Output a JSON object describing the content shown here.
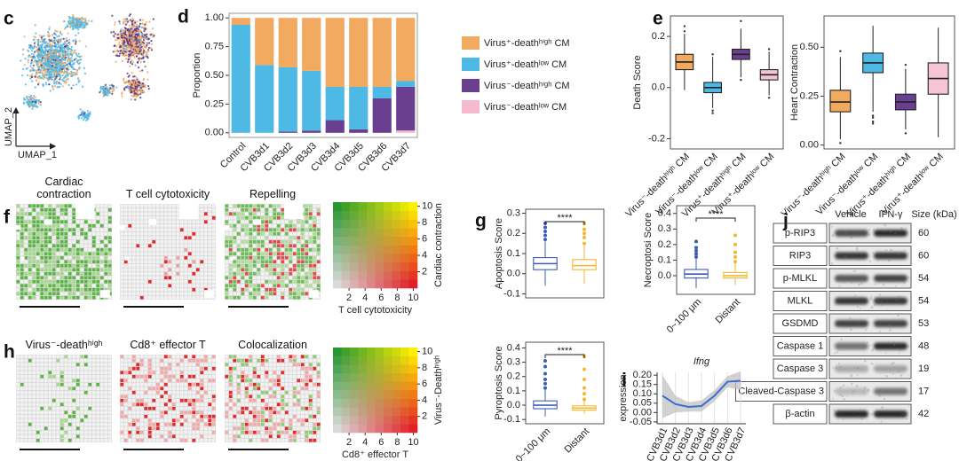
{
  "panel_labels": [
    "c",
    "d",
    "e",
    "f",
    "g",
    "h",
    "i",
    "j"
  ],
  "umap": {
    "x_label": "UMAP_1",
    "y_label": "UMAP_2"
  },
  "spatial_maps": {
    "f": [
      "Cardiac contraction",
      "T cell cytotoxicity",
      "Repelling"
    ],
    "h": [
      "Virus⁻-deathʰⁱᵍʰ",
      "Cd8⁺ effector T",
      "Colocalization"
    ]
  },
  "chart_data": [
    {
      "type": "bar",
      "stacked": true,
      "ylabel": "Proportion",
      "categories": [
        "Control",
        "CVB3d1",
        "CVB3d2",
        "CVB3d3",
        "CVB3d4",
        "CVB3d5",
        "CVB3d6",
        "CVB3d7"
      ],
      "series": [
        {
          "name": "Virus⁺-deathʰⁱᵍʰ CM",
          "color": "#f2a960",
          "values": [
            0.06,
            0.41,
            0.43,
            0.46,
            0.6,
            0.6,
            0.6,
            0.55
          ]
        },
        {
          "name": "Virus⁺-deathˡᵒʷ CM",
          "color": "#4fb9e6",
          "values": [
            0.94,
            0.59,
            0.56,
            0.52,
            0.29,
            0.37,
            0.1,
            0.05
          ]
        },
        {
          "name": "Virus⁻-deathʰⁱᵍʰ CM",
          "color": "#6b3f8f",
          "values": [
            0,
            0,
            0.01,
            0.02,
            0.11,
            0.03,
            0.3,
            0.38
          ]
        },
        {
          "name": "Virus⁻-deathˡᵒʷ CM",
          "color": "#f5b9d0",
          "values": [
            0,
            0,
            0,
            0,
            0,
            0,
            0,
            0.02
          ]
        }
      ],
      "ylim": [
        -0.04,
        1.04
      ],
      "yticks": [
        {
          "value": 0,
          "label": "0.00"
        },
        0.25,
        {
          "value": 0.5,
          "label": "0.50"
        },
        0.75,
        {
          "value": 1,
          "label": "1.00"
        }
      ]
    },
    {
      "type": "box",
      "ylabel": "Death Score",
      "filled": true,
      "categories": [
        "Virus⁻-deathʰⁱᵍʰ CM",
        "Virus⁻-deathˡᵒʷ CM",
        "Virus⁺-deathʰⁱᵍʰ CM",
        "Virus⁺-deathˡᵒʷ CM"
      ],
      "colors": [
        "#f2a960",
        "#4fb9e6",
        "#6b3f8f",
        "#f5c4d6"
      ],
      "boxes": [
        {
          "whisker_low": -0.01,
          "q1": 0.07,
          "median": 0.1,
          "q3": 0.13,
          "whisker_high": 0.21,
          "outliers": [
            0.22,
            0.24
          ]
        },
        {
          "whisker_low": -0.08,
          "q1": -0.02,
          "median": 0.0,
          "q3": 0.02,
          "whisker_high": 0.12,
          "outliers": [
            -0.09,
            -0.1,
            0.13
          ]
        },
        {
          "whisker_low": 0.04,
          "q1": 0.11,
          "median": 0.13,
          "q3": 0.15,
          "whisker_high": 0.23,
          "outliers": [
            0.03,
            0.26
          ]
        },
        {
          "whisker_low": -0.03,
          "q1": 0.03,
          "median": 0.05,
          "q3": 0.07,
          "whisker_high": 0.14,
          "outliers": [
            0.15,
            -0.04
          ]
        }
      ],
      "ylim": [
        -0.24,
        0.28
      ],
      "yticks": [
        -0.2,
        {
          "value": 0,
          "label": "0.0"
        },
        0.2
      ]
    },
    {
      "type": "box",
      "ylabel": "Heart Contraction",
      "filled": true,
      "categories": [
        "Virus⁻-deathʰⁱᵍʰ CM",
        "Virus⁻-deathˡᵒʷ CM",
        "Virus⁺-deathʰⁱᵍʰ CM",
        "Virus⁺-deathˡᵒʷ CM"
      ],
      "colors": [
        "#f2a960",
        "#4fb9e6",
        "#6b3f8f",
        "#f5c4d6"
      ],
      "boxes": [
        {
          "whisker_low": 0.03,
          "q1": 0.17,
          "median": 0.22,
          "q3": 0.28,
          "whisker_high": 0.45,
          "outliers": [
            0.01,
            0.48
          ]
        },
        {
          "whisker_low": 0.17,
          "q1": 0.37,
          "median": 0.42,
          "q3": 0.47,
          "whisker_high": 0.61,
          "outliers": [
            0.15,
            0.14,
            0.12,
            0.11
          ]
        },
        {
          "whisker_low": 0.08,
          "q1": 0.18,
          "median": 0.22,
          "q3": 0.26,
          "whisker_high": 0.39,
          "outliers": [
            0.06,
            0.41
          ]
        },
        {
          "whisker_low": 0.04,
          "q1": 0.26,
          "median": 0.34,
          "q3": 0.42,
          "whisker_high": 0.6,
          "outliers": []
        }
      ],
      "ylim": [
        -0.02,
        0.66
      ],
      "yticks": [
        {
          "value": 0,
          "label": "0.00"
        },
        0.25,
        {
          "value": 0.5,
          "label": "0.50"
        }
      ]
    },
    {
      "type": "heatmap",
      "xlabel": "T cell cytotoxicity",
      "ylabel": "Cardiac contraction",
      "xlim": [
        0,
        10.5
      ],
      "ylim": [
        0,
        10.5
      ],
      "xticks": [
        2,
        4,
        6,
        8,
        10
      ],
      "yticks": [
        2,
        4,
        6,
        8,
        10
      ]
    },
    {
      "type": "heatmap",
      "xlabel": "Cd8⁺ effector T",
      "ylabel": "Virus⁻-Deathʰⁱᵍʰ",
      "xlim": [
        0,
        10.5
      ],
      "ylim": [
        0,
        10.5
      ],
      "xticks": [
        2,
        4,
        6,
        8,
        10
      ],
      "yticks": [
        2,
        4,
        6,
        8,
        10
      ]
    },
    {
      "type": "box",
      "ylabel": "Apoptosis Score",
      "filled": false,
      "annotation": "****",
      "colors": [
        "#3e5cb8",
        "#f5b731"
      ],
      "boxes": [
        {
          "whisker_low": -0.06,
          "q1": 0.02,
          "median": 0.05,
          "q3": 0.08,
          "whisker_high": 0.16,
          "outliers": [
            0.17,
            0.19,
            0.21,
            0.23,
            0.25
          ]
        },
        {
          "whisker_low": -0.05,
          "q1": 0.02,
          "median": 0.04,
          "q3": 0.07,
          "whisker_high": 0.14,
          "outliers": [
            0.15,
            0.18,
            0.2,
            0.22,
            0.25
          ]
        }
      ],
      "ylim": [
        -0.12,
        0.32
      ],
      "yticks": [
        -0.1,
        {
          "value": 0,
          "label": "0.0"
        },
        0.1,
        0.2,
        0.3
      ]
    },
    {
      "type": "box",
      "ylabel": "Necroptosi Score",
      "filled": false,
      "annotation": "****",
      "categories": [
        "0~100 μm",
        "Distant"
      ],
      "colors": [
        "#3e5cb8",
        "#f5b731"
      ],
      "boxes": [
        {
          "whisker_low": -0.08,
          "q1": -0.015,
          "median": 0.01,
          "q3": 0.04,
          "whisker_high": 0.11,
          "outliers": [
            0.12,
            0.14,
            0.16,
            0.18,
            0.22
          ]
        },
        {
          "whisker_low": -0.06,
          "q1": -0.015,
          "median": 0.0,
          "q3": 0.02,
          "whisker_high": 0.08,
          "outliers": [
            0.09,
            0.12,
            0.15,
            0.2,
            0.26
          ]
        }
      ],
      "ylim": [
        -0.12,
        0.45
      ],
      "yticks": [
        {
          "value": 0,
          "label": "0.0"
        },
        0.1,
        0.2,
        0.3,
        0.4
      ]
    },
    {
      "type": "box",
      "ylabel": "Pyroptosis Score",
      "filled": false,
      "annotation": "****",
      "categories": [
        "0~100 μm",
        "Distant"
      ],
      "colors": [
        "#3e5cb8",
        "#f5b731"
      ],
      "boxes": [
        {
          "whisker_low": -0.08,
          "q1": -0.025,
          "median": 0.0,
          "q3": 0.03,
          "whisker_high": 0.11,
          "outliers": [
            0.12,
            0.15,
            0.18,
            0.22,
            0.27,
            0.31
          ]
        },
        {
          "whisker_low": -0.06,
          "q1": -0.035,
          "median": -0.02,
          "q3": -0.005,
          "whisker_high": 0.03,
          "outliers": [
            0.04,
            0.08,
            0.12,
            0.18,
            0.25,
            0.34
          ]
        }
      ],
      "ylim": [
        -0.13,
        0.44
      ],
      "yticks": [
        -0.1,
        {
          "value": 0,
          "label": "0.0"
        },
        0.1,
        0.2,
        0.3,
        0.4
      ]
    },
    {
      "type": "line",
      "title": "Ifng",
      "ylabel": "expression",
      "grid": true,
      "color": "#3a6fd0",
      "categories": [
        "CVB3d1",
        "CVB3d2",
        "CVB3d3",
        "CVB3d4",
        "CVB3d5",
        "CVB3d6",
        "CVB3d7"
      ],
      "values": [
        0.09,
        0.045,
        0.03,
        0.035,
        0.09,
        0.165,
        0.17
      ],
      "lower": [
        -0.03,
        0.0,
        0.005,
        0.005,
        0.06,
        0.135,
        0.12
      ],
      "upper": [
        0.2,
        0.09,
        0.055,
        0.065,
        0.12,
        0.195,
        0.22
      ],
      "ylim": [
        -0.06,
        0.215
      ],
      "yticks": [
        -0.05,
        {
          "value": 0,
          "label": "0.00"
        },
        0.05,
        {
          "value": 0.1,
          "label": "0.10"
        },
        0.15,
        {
          "value": 0.2,
          "label": "0.20"
        }
      ]
    }
  ],
  "blot": {
    "columns": [
      "Vehicle",
      "IFN-γ",
      "Size (kDa)"
    ],
    "rows": [
      {
        "label": "p-RIP3",
        "size": 60
      },
      {
        "label": "RIP3",
        "size": 60
      },
      {
        "label": "p-MLKL",
        "size": 54
      },
      {
        "label": "MLKL",
        "size": 54
      },
      {
        "label": "GSDMD",
        "size": 53
      },
      {
        "label": "Caspase 1",
        "size": 48
      },
      {
        "label": "Caspase 3",
        "size": 19
      },
      {
        "label": "Cleaved-Caspase 3",
        "size": 17
      },
      {
        "label": "β-actin",
        "size": 42
      }
    ]
  }
}
